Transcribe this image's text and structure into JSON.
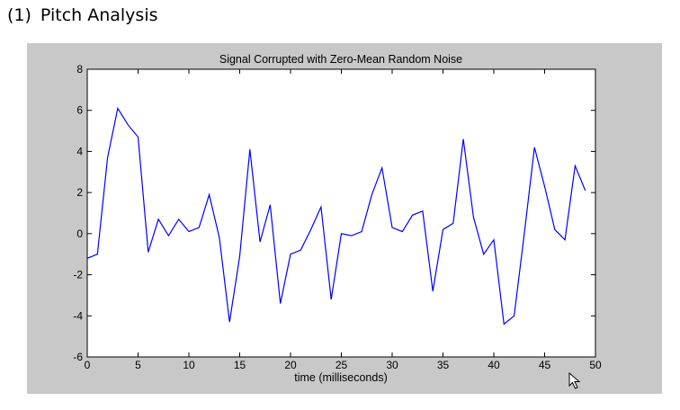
{
  "document": {
    "section_number": "(1)",
    "section_title": "Pitch Analysis"
  },
  "figure": {
    "background": "#c8c8c8",
    "plot_background": "#ffffff",
    "line_color": "#0000ff"
  },
  "chart_data": {
    "type": "line",
    "title": "Signal Corrupted with Zero-Mean Random Noise",
    "xlabel": "time (milliseconds)",
    "ylabel": "",
    "xlim": [
      0,
      50
    ],
    "ylim": [
      -6,
      8
    ],
    "xticks": [
      0,
      5,
      10,
      15,
      20,
      25,
      30,
      35,
      40,
      45,
      50
    ],
    "yticks": [
      -6,
      -4,
      -2,
      0,
      2,
      4,
      6,
      8
    ],
    "grid": false,
    "series": [
      {
        "x": [
          0,
          1,
          2,
          3,
          4,
          5,
          6,
          7,
          8,
          9,
          10,
          11,
          12,
          13,
          14,
          15,
          16,
          17,
          18,
          19,
          20,
          21,
          22,
          23,
          24,
          25,
          26,
          27,
          28,
          29,
          30,
          31,
          32,
          33,
          34,
          35,
          36,
          37,
          38,
          39,
          40,
          41,
          42,
          43,
          44,
          45,
          46,
          47,
          48,
          49
        ],
        "values": [
          -1.2,
          -1.0,
          3.7,
          6.1,
          5.3,
          4.7,
          -0.9,
          0.7,
          -0.1,
          0.7,
          0.1,
          0.3,
          1.9,
          -0.2,
          -4.3,
          -1.1,
          4.1,
          -0.4,
          1.4,
          -3.4,
          -1.0,
          -0.8,
          0.2,
          1.3,
          -3.2,
          0.0,
          -0.1,
          0.1,
          1.9,
          3.2,
          0.3,
          0.1,
          0.9,
          1.1,
          -2.8,
          0.2,
          0.5,
          4.6,
          0.8,
          -1.0,
          -0.3,
          -4.4,
          -4.0,
          0.0,
          4.2,
          2.3,
          0.2,
          -0.3,
          3.3,
          2.1
        ]
      }
    ]
  }
}
